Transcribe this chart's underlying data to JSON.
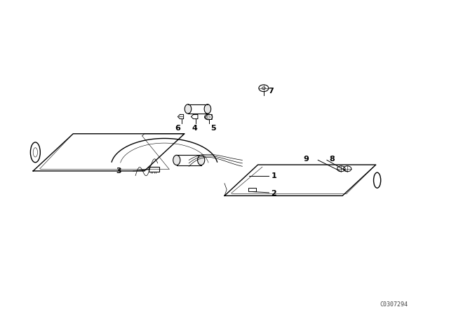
{
  "background_color": "#ffffff",
  "diagram_code": "C0307294",
  "label_color": "#000000",
  "line_color": "#000000",
  "lw_main": 1.0,
  "lw_thin": 0.6,
  "label_fontsize": 8,
  "code_fontsize": 6
}
